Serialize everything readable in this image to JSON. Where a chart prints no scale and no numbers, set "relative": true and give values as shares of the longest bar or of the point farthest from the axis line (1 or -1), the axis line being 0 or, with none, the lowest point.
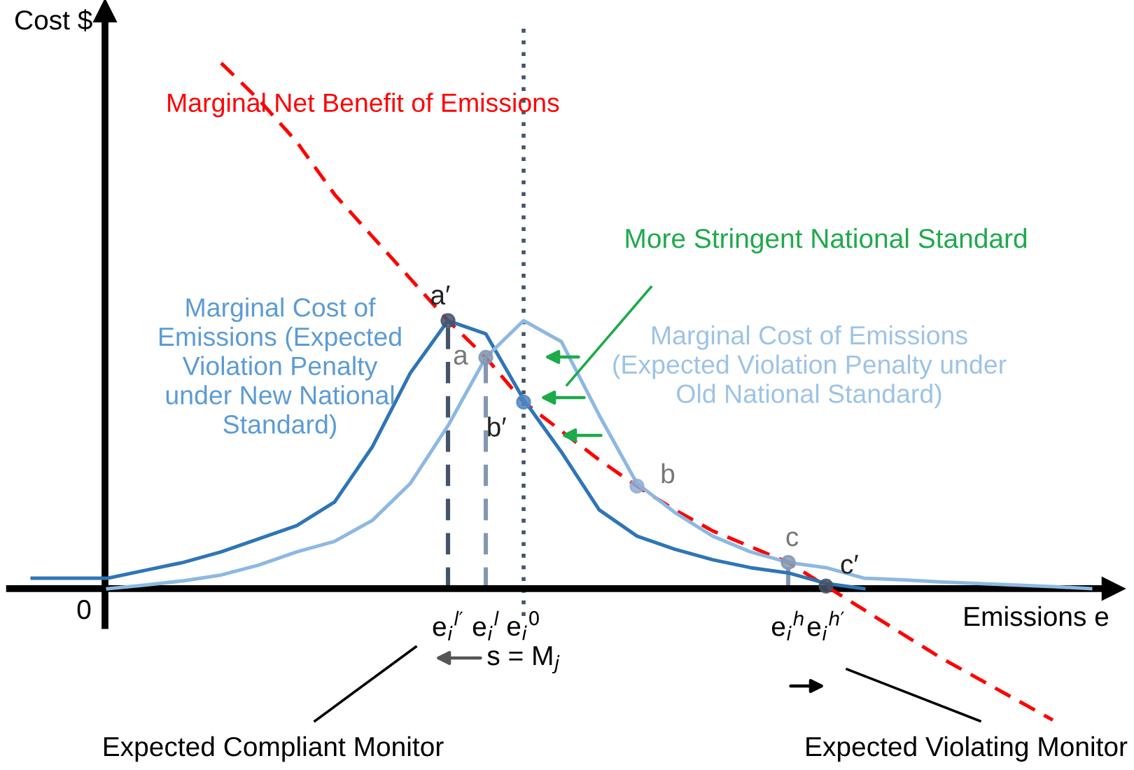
{
  "chart_data": {
    "type": "line",
    "relative": true,
    "ylabel": "Cost $",
    "xlabel": "Emissions e",
    "categories": [
      null,
      null,
      null,
      null,
      null,
      null,
      null,
      null,
      null,
      null,
      null,
      "e$_{i}$$^{l′}$",
      "e$_{i}$$^{l}$",
      "e$_{i}$$^{0}$\ns = M$_{j}$",
      null,
      null,
      null,
      null,
      null,
      null,
      "e$_{i}$$^{h}$",
      "e$_{i}$$^{h′}$",
      null,
      null,
      null,
      null,
      null,
      null,
      null
    ],
    "legend": false,
    "grid": false,
    "series": [
      {
        "name": "Marginal Net Benefit of Emissions",
        "color": "#ff0000",
        "line_style": "dashed",
        "values": [
          null,
          null,
          null,
          null,
          null,
          1.0,
          0.93,
          0.85,
          0.75,
          0.67,
          0.59,
          0.51,
          0.44,
          0.355,
          0.3,
          0.245,
          0.195,
          0.15,
          0.11,
          0.08,
          0.05,
          0.005,
          -0.04,
          -0.085,
          -0.13,
          -0.17,
          -0.21,
          -0.25,
          null
        ]
      },
      {
        "name": "Marginal Cost of\nEmissions (Expected\nViolation Penalty\nunder New National\nStandard)",
        "color": "#2e75b6",
        "values": [
          0.02,
          0.02,
          0.02,
          0.035,
          0.05,
          0.07,
          0.095,
          0.12,
          0.165,
          0.27,
          0.41,
          0.51,
          0.485,
          0.36,
          0.26,
          0.15,
          0.1,
          0.075,
          0.055,
          0.04,
          0.03,
          0.01,
          0.0,
          null,
          null,
          null,
          null,
          null,
          null
        ]
      },
      {
        "name": "Marginal Cost of Emissions\n(Expected Violation Penalty under\nOld National Standard)",
        "color": "#8db8e2",
        "values": [
          null,
          null,
          0.0,
          0.007,
          0.015,
          0.026,
          0.045,
          0.07,
          0.09,
          0.13,
          0.2,
          0.31,
          0.44,
          0.51,
          0.47,
          0.33,
          0.2,
          0.145,
          0.1,
          0.07,
          0.05,
          0.04,
          0.02,
          0.017,
          0.013,
          0.01,
          0.007,
          0.004,
          0.0
        ]
      },
      {
        "type": "lollipop",
        "color": "#44546a",
        "line_style": "dashed",
        "marker": "circle",
        "values": [
          null,
          null,
          null,
          null,
          null,
          null,
          null,
          null,
          null,
          null,
          null,
          0.51,
          null,
          null,
          null,
          null,
          null,
          null,
          null,
          null,
          null,
          0.005,
          null,
          null,
          null,
          null,
          null,
          null,
          null
        ]
      },
      {
        "type": "lollipop",
        "color": "#8497b0",
        "line_style": "dashed",
        "marker": "circle",
        "values": [
          null,
          null,
          null,
          null,
          null,
          null,
          null,
          null,
          null,
          null,
          null,
          null,
          0.44,
          null,
          null,
          null,
          null,
          null,
          null,
          null,
          0.05,
          null,
          null,
          null,
          null,
          null,
          null,
          null,
          null
        ]
      },
      {
        "type": "scatter",
        "color": "#4f88c6",
        "marker": "circle",
        "values": [
          null,
          null,
          null,
          null,
          null,
          null,
          null,
          null,
          null,
          null,
          null,
          null,
          null,
          0.355,
          null,
          null,
          null,
          null,
          null,
          null,
          null,
          null,
          null,
          null,
          null,
          null,
          null,
          null,
          null
        ]
      },
      {
        "type": "scatter",
        "color": "#8faed6",
        "marker": "circle",
        "values": [
          null,
          null,
          null,
          null,
          null,
          null,
          null,
          null,
          null,
          null,
          null,
          null,
          null,
          null,
          null,
          null,
          0.195,
          null,
          null,
          null,
          null,
          null,
          null,
          null,
          null,
          null,
          null,
          null,
          null
        ]
      }
    ],
    "ref_lines": [
      {
        "axis": "x",
        "value": "e$_{i}$$^{0}$\ns = M$_{j}$",
        "color": "#44546a",
        "line_style": "dotted"
      }
    ],
    "annotations": [
      {
        "text": "a′",
        "x": "e$_{i}$$^{l′}$",
        "y": 0.51
      },
      {
        "text": "a",
        "x": "e$_{i}$$^{l}$",
        "y": 0.44
      },
      {
        "text": "b′",
        "x": "e$_{i}$$^{0}$\ns = M$_{j}$",
        "y": 0.355
      },
      {
        "text": "c",
        "x": "e$_{i}$$^{h}$",
        "y": 0.05
      },
      {
        "text": "c′",
        "x": "e$_{i}$$^{h′}$",
        "y": 0.005
      },
      "More Stringent National Standard",
      "Expected Compliant Monitor",
      "Expected Violating Monitor",
      "0",
      "b"
    ]
  }
}
